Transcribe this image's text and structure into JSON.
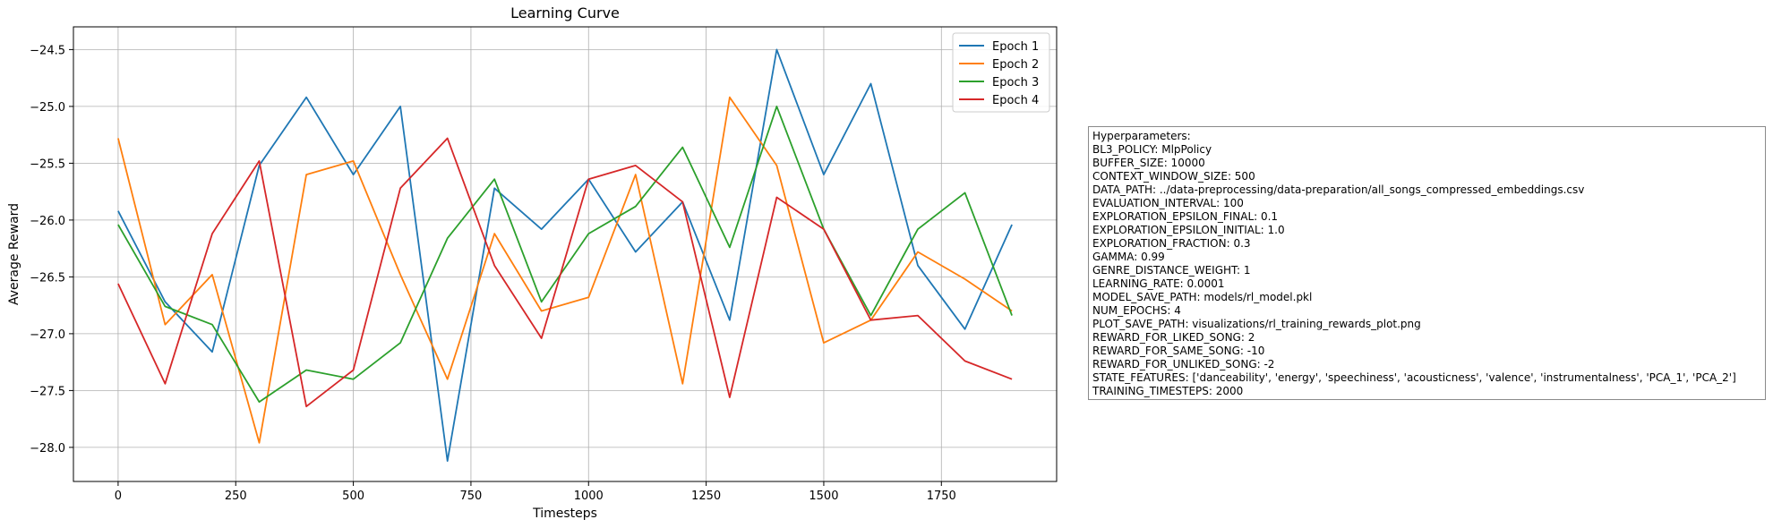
{
  "chart_data": {
    "type": "line",
    "title": "Learning Curve",
    "xlabel": "Timesteps",
    "ylabel": "Average Reward",
    "xlim": [
      -95,
      1995
    ],
    "ylim": [
      -28.3,
      -24.3
    ],
    "xticks": [
      0,
      250,
      500,
      750,
      1000,
      1250,
      1500,
      1750
    ],
    "yticks": [
      -28.0,
      -27.5,
      -27.0,
      -26.5,
      -26.0,
      -25.5,
      -25.0,
      -24.5
    ],
    "grid": true,
    "legend_position": "top-right",
    "x": [
      0,
      100,
      200,
      300,
      400,
      500,
      600,
      700,
      800,
      900,
      1000,
      1100,
      1200,
      1300,
      1400,
      1500,
      1600,
      1700,
      1800,
      1900
    ],
    "series": [
      {
        "name": "Epoch 1",
        "color": "#1f77b4",
        "values": [
          -25.92,
          -26.72,
          -27.16,
          -25.52,
          -24.92,
          -25.6,
          -25.0,
          -28.12,
          -25.72,
          -26.08,
          -25.64,
          -26.28,
          -25.84,
          -26.88,
          -24.5,
          -25.6,
          -24.8,
          -26.4,
          -26.96,
          -26.04
        ]
      },
      {
        "name": "Epoch 2",
        "color": "#ff7f0e",
        "values": [
          -25.28,
          -26.92,
          -26.48,
          -27.96,
          -25.6,
          -25.48,
          -26.48,
          -27.4,
          -26.12,
          -26.8,
          -26.68,
          -25.6,
          -27.44,
          -24.92,
          -25.52,
          -27.08,
          -26.88,
          -26.28,
          -26.52,
          -26.8
        ]
      },
      {
        "name": "Epoch 3",
        "color": "#2ca02c",
        "values": [
          -26.04,
          -26.76,
          -26.92,
          -27.6,
          -27.32,
          -27.4,
          -27.08,
          -26.16,
          -25.64,
          -26.72,
          -26.12,
          -25.88,
          -25.36,
          -26.24,
          -25.0,
          -26.08,
          -26.84,
          -26.08,
          -25.76,
          -26.84
        ]
      },
      {
        "name": "Epoch 4",
        "color": "#d62728",
        "values": [
          -26.56,
          -27.44,
          -26.12,
          -25.48,
          -27.64,
          -27.32,
          -25.72,
          -25.28,
          -26.4,
          -27.04,
          -25.64,
          -25.52,
          -25.84,
          -27.56,
          -25.8,
          -26.08,
          -26.88,
          -26.84,
          -27.24,
          -27.4
        ]
      }
    ]
  },
  "hyperparameters": {
    "lines": [
      "Hyperparameters:",
      "BL3_POLICY: MlpPolicy",
      "BUFFER_SIZE: 10000",
      "CONTEXT_WINDOW_SIZE: 500",
      "DATA_PATH: ../data-preprocessing/data-preparation/all_songs_compressed_embeddings.csv",
      "EVALUATION_INTERVAL: 100",
      "EXPLORATION_EPSILON_FINAL: 0.1",
      "EXPLORATION_EPSILON_INITIAL: 1.0",
      "EXPLORATION_FRACTION: 0.3",
      "GAMMA: 0.99",
      "GENRE_DISTANCE_WEIGHT: 1",
      "LEARNING_RATE: 0.0001",
      "MODEL_SAVE_PATH: models/rl_model.pkl",
      "NUM_EPOCHS: 4",
      "PLOT_SAVE_PATH: visualizations/rl_training_rewards_plot.png",
      "REWARD_FOR_LIKED_SONG: 2",
      "REWARD_FOR_SAME_SONG: -10",
      "REWARD_FOR_UNLIKED_SONG: -2",
      "STATE_FEATURES: ['danceability', 'energy', 'speechiness', 'acousticness', 'valence', 'instrumentalness', 'PCA_1', 'PCA_2']",
      "TRAINING_TIMESTEPS: 2000"
    ]
  }
}
